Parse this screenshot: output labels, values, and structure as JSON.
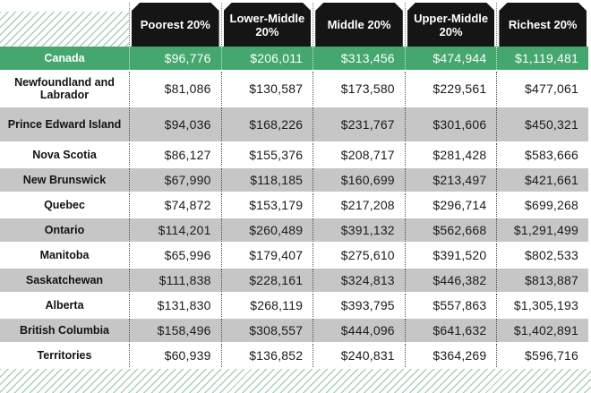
{
  "chart_data": {
    "type": "table",
    "title": "",
    "value_prefix": "$",
    "columns": [
      "Poorest 20%",
      "Lower-Middle 20%",
      "Middle 20%",
      "Upper-Middle 20%",
      "Richest 20%"
    ],
    "rows": [
      {
        "label": "Canada",
        "values": [
          96776,
          206011,
          313456,
          474944,
          1119481
        ],
        "style": "green",
        "tall": false
      },
      {
        "label": "Newfoundland and Labrador",
        "values": [
          81086,
          130587,
          173580,
          229561,
          477061
        ],
        "style": "white",
        "tall": true
      },
      {
        "label": "Prince Edward Island",
        "values": [
          94036,
          168226,
          231767,
          301606,
          450321
        ],
        "style": "gray",
        "tall": true
      },
      {
        "label": "Nova Scotia",
        "values": [
          86127,
          155376,
          208717,
          281428,
          583666
        ],
        "style": "white",
        "tall": false
      },
      {
        "label": "New Brunswick",
        "values": [
          67990,
          118185,
          160699,
          213497,
          421661
        ],
        "style": "gray",
        "tall": false
      },
      {
        "label": "Quebec",
        "values": [
          74872,
          153179,
          217208,
          296714,
          699268
        ],
        "style": "white",
        "tall": false
      },
      {
        "label": "Ontario",
        "values": [
          114201,
          260489,
          391132,
          562668,
          1291499
        ],
        "style": "gray",
        "tall": false
      },
      {
        "label": "Manitoba",
        "values": [
          65996,
          179407,
          275610,
          391520,
          802533
        ],
        "style": "white",
        "tall": false
      },
      {
        "label": "Saskatchewan",
        "values": [
          111838,
          228161,
          324813,
          446382,
          813887
        ],
        "style": "gray",
        "tall": false
      },
      {
        "label": "Alberta",
        "values": [
          131830,
          268119,
          393795,
          557863,
          1305193
        ],
        "style": "white",
        "tall": false
      },
      {
        "label": "British Columbia",
        "values": [
          158496,
          308557,
          444096,
          641632,
          1402891
        ],
        "style": "gray",
        "tall": false
      },
      {
        "label": "Territories",
        "values": [
          60939,
          136852,
          240831,
          364269,
          596716
        ],
        "style": "white",
        "tall": false
      }
    ]
  },
  "colors": {
    "accent_green": "#44A76D",
    "header_black": "#151515",
    "row_gray": "#C6C6C6",
    "hatch_green": "#AACFB8"
  }
}
